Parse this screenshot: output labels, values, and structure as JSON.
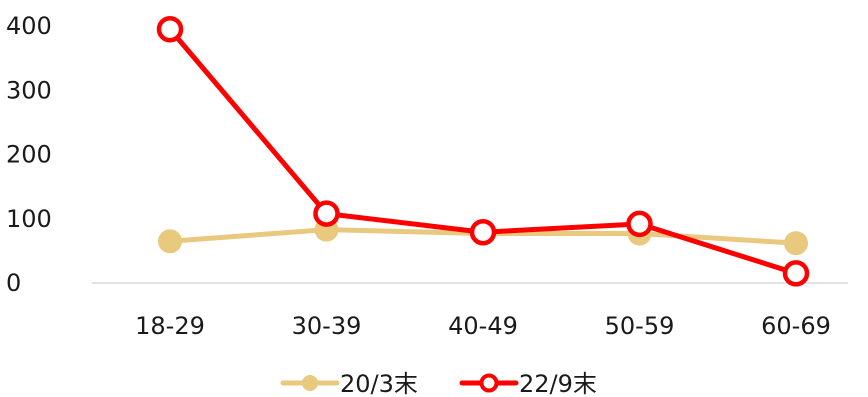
{
  "chart_data": {
    "type": "line",
    "categories": [
      "18-29",
      "30-39",
      "40-49",
      "50-59",
      "60-69"
    ],
    "series": [
      {
        "name": "20/3末",
        "values": [
          65,
          83,
          77,
          77,
          62
        ],
        "color": "#E8C97E",
        "marker": "filled-circle"
      },
      {
        "name": "22/9末",
        "values": [
          395,
          108,
          79,
          92,
          15
        ],
        "color": "#FF0000",
        "marker": "hollow-circle"
      }
    ],
    "ylim": [
      0,
      400
    ],
    "yticks": [
      0,
      100,
      200,
      300,
      400
    ],
    "grid": false,
    "legend_position": "bottom-center"
  }
}
